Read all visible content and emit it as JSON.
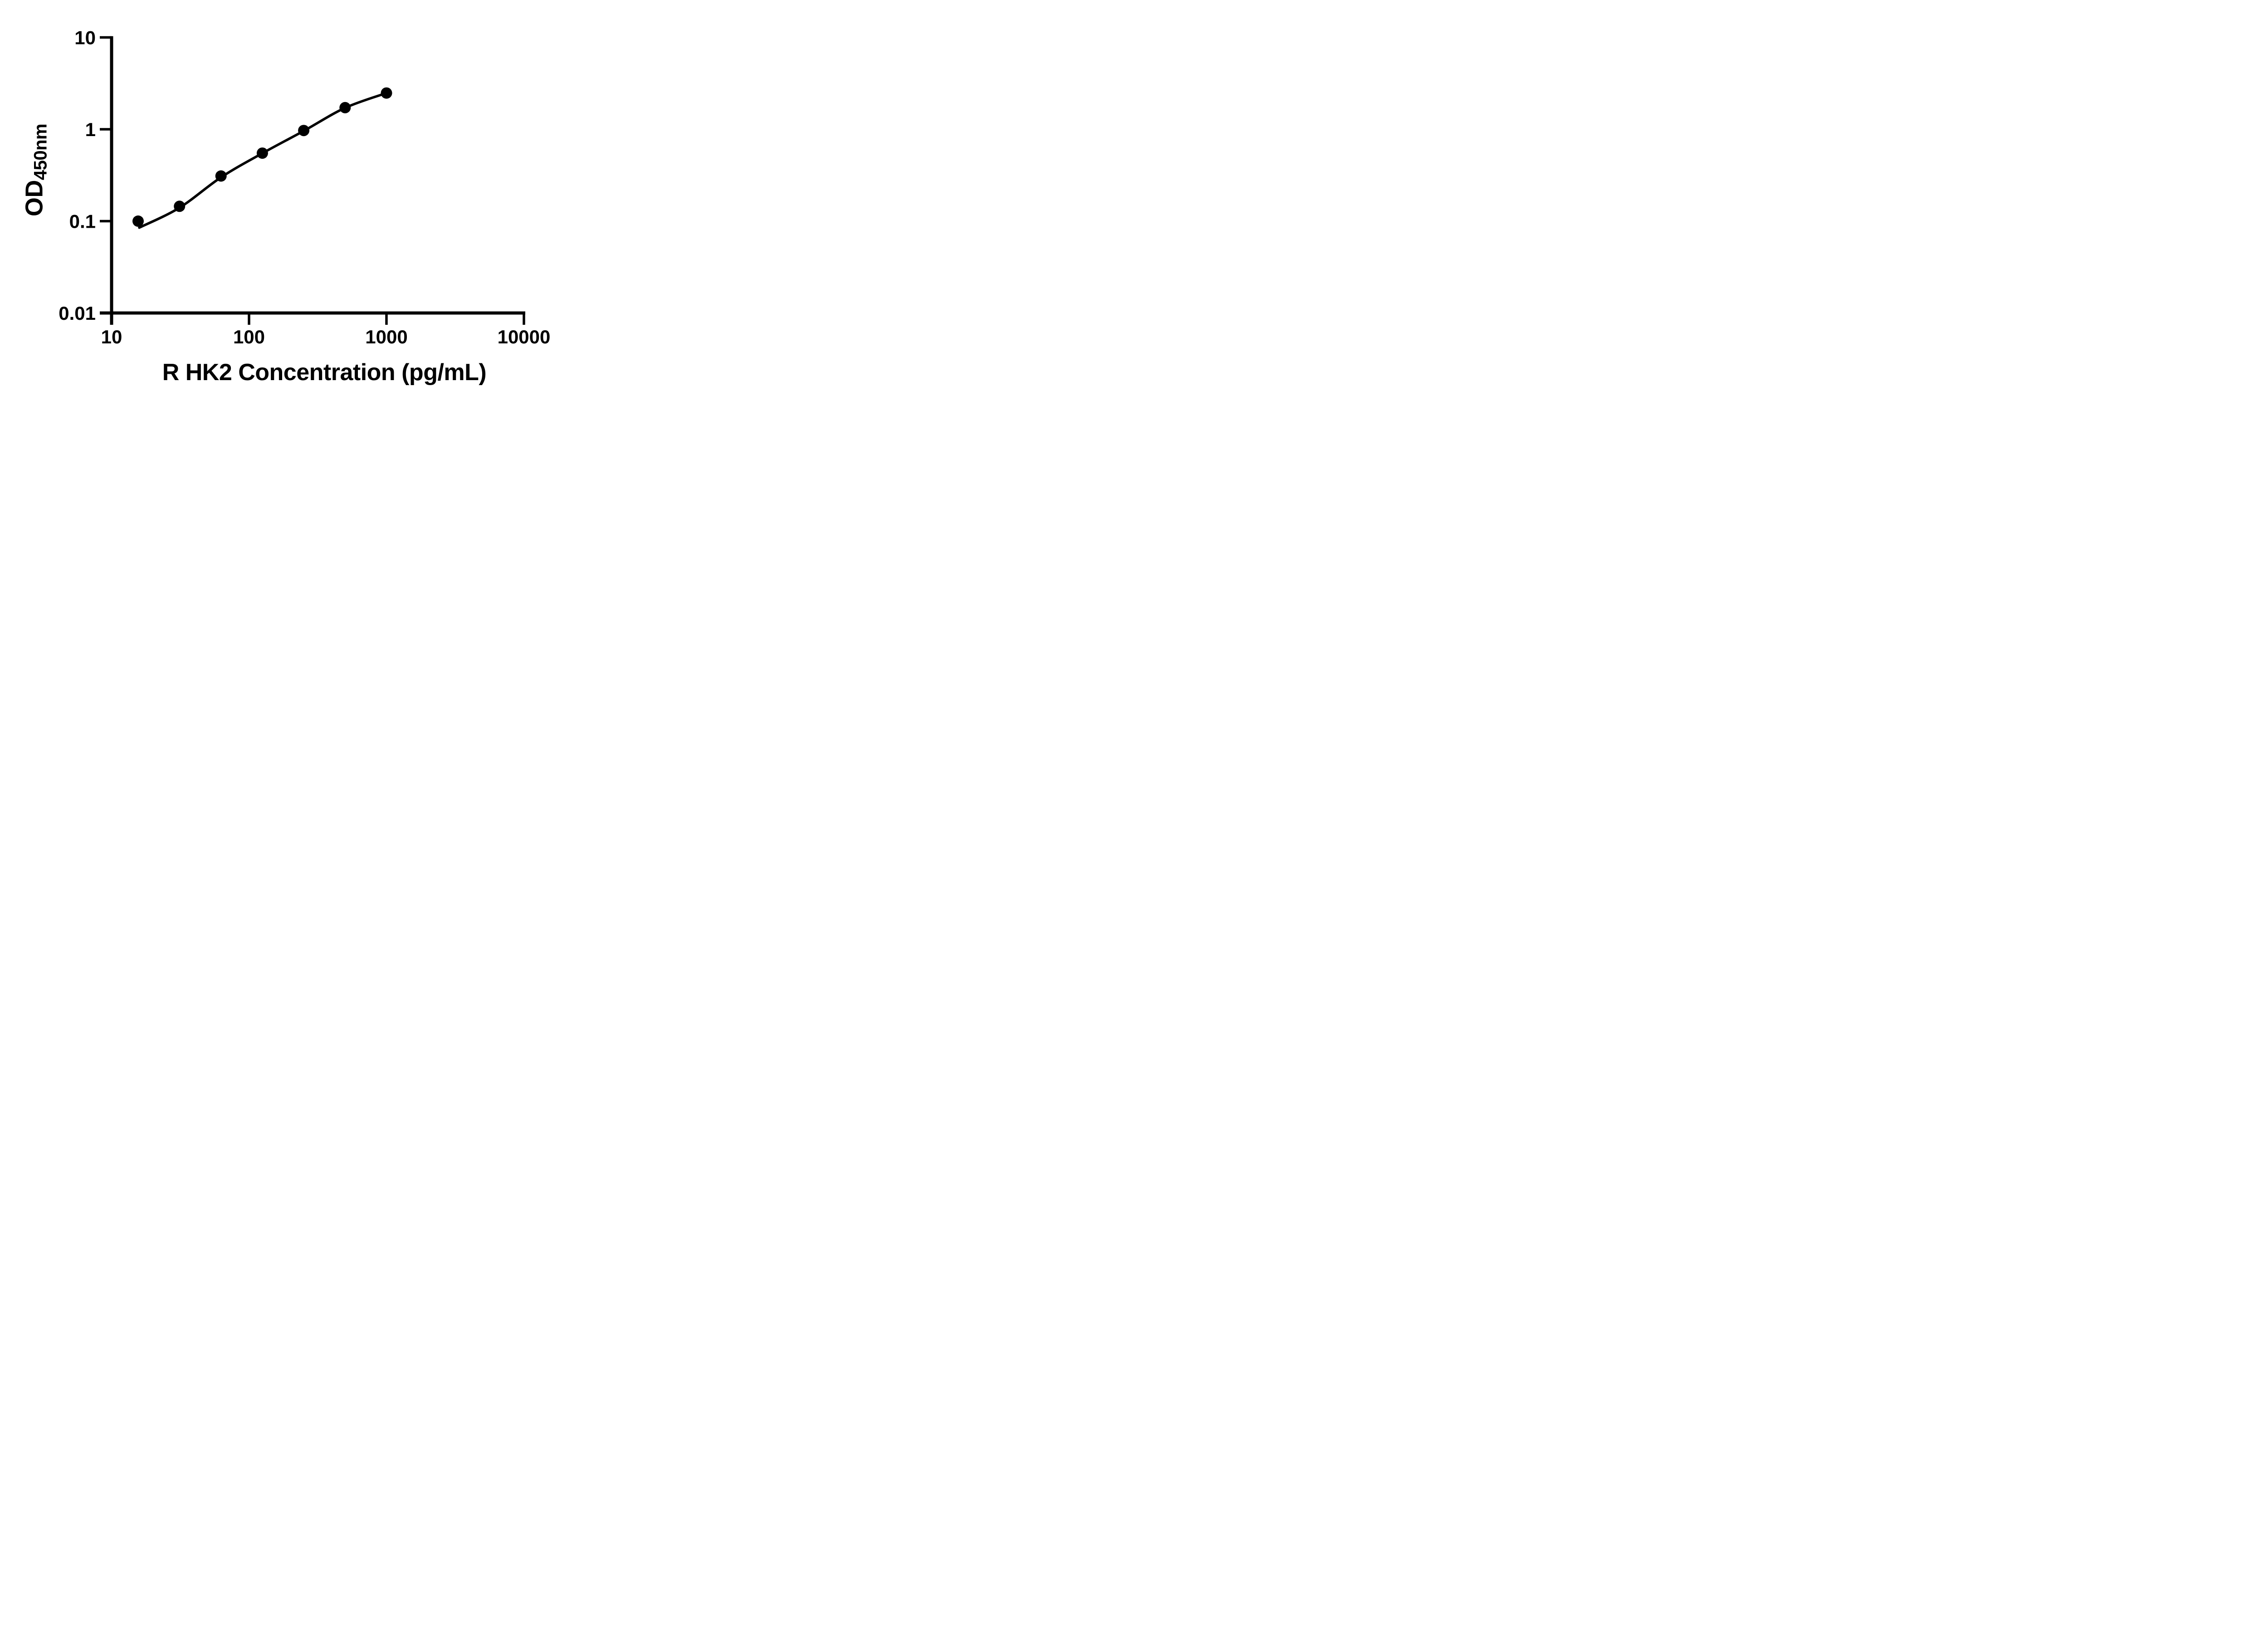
{
  "colors": {
    "foreground": "#000000",
    "background": "#ffffff"
  },
  "chart_data": {
    "type": "scatter",
    "subtype": "standard-curve-with-fitted-line",
    "title": "",
    "xlabel": "R HK2 Concentration (pg/mL)",
    "ylabel": "OD",
    "ylabel_subscript": "450nm",
    "x_scale": "log10",
    "y_scale": "log10",
    "xlim": [
      10,
      10000
    ],
    "ylim": [
      0.01,
      10
    ],
    "grid": false,
    "legend": "none",
    "x_ticks": [
      {
        "value": 10,
        "label": "10"
      },
      {
        "value": 100,
        "label": "100"
      },
      {
        "value": 1000,
        "label": "1000"
      },
      {
        "value": 10000,
        "label": "10000"
      }
    ],
    "y_ticks": [
      {
        "value": 10,
        "label": "10"
      },
      {
        "value": 1,
        "label": "1"
      },
      {
        "value": 0.1,
        "label": "0.1"
      },
      {
        "value": 0.01,
        "label": "0.01"
      }
    ],
    "series": [
      {
        "name": "standard-points",
        "marker": "filled-circle",
        "color": "#000000",
        "x": [
          15.6,
          31.2,
          62.5,
          125,
          250,
          500,
          1000
        ],
        "y": [
          0.1,
          0.145,
          0.31,
          0.55,
          0.97,
          1.72,
          2.48
        ]
      }
    ],
    "fit_curve": {
      "name": "fitted-curve",
      "color": "#000000",
      "points": [
        [
          15.9,
          0.085
        ],
        [
          31.2,
          0.14
        ],
        [
          62.5,
          0.3
        ],
        [
          125,
          0.548
        ],
        [
          250,
          0.96
        ],
        [
          500,
          1.71
        ],
        [
          1000,
          2.48
        ]
      ]
    }
  }
}
